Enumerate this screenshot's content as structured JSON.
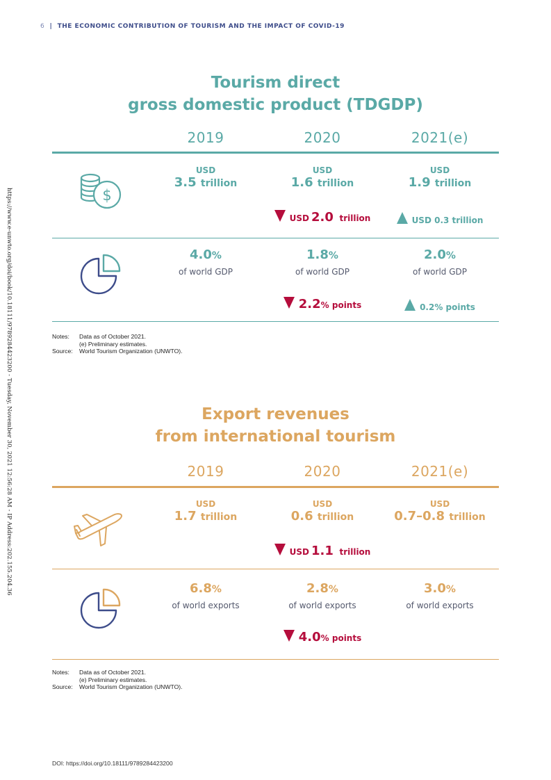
{
  "header": {
    "page_number": "6",
    "separator": "|",
    "title": "THE ECONOMIC CONTRIBUTION OF TOURISM AND THE IMPACT OF COVID-19"
  },
  "sidebar_stamp": "https://www.e-unwto.org/doi/book/10.18111/9789284423200 - Tuesday, November 30, 2021 12:56:28 AM - IP Address:202.155.204.36",
  "tdgdp": {
    "title_line1": "Tourism direct",
    "title_line2": "gross domestic product (TDGDP)",
    "years": [
      "2019",
      "2020",
      "2021(e)"
    ],
    "value_row": {
      "icon": "coins-dollar-icon",
      "cells": [
        {
          "unit": "USD",
          "value": "3.5",
          "suffix": "trillion"
        },
        {
          "unit": "USD",
          "value": "1.6",
          "suffix": "trillion"
        },
        {
          "unit": "USD",
          "value": "1.9",
          "suffix": "trillion"
        }
      ],
      "change_2020": {
        "direction": "down",
        "prefix": "USD",
        "value": "2.0",
        "suffix": "trillion"
      },
      "change_2021": {
        "direction": "up",
        "text": "USD 0.3 trillion"
      }
    },
    "share_row": {
      "icon": "pie-chart-icon",
      "cells": [
        {
          "value": "4.0",
          "unit": "%",
          "label": "of world GDP"
        },
        {
          "value": "1.8",
          "unit": "%",
          "label": "of world GDP"
        },
        {
          "value": "2.0",
          "unit": "%",
          "label": "of world GDP"
        }
      ],
      "change_2020": {
        "direction": "down",
        "value": "2.2",
        "suffix": "% points"
      },
      "change_2021": {
        "direction": "up",
        "text": "0.2% points"
      }
    },
    "notes": {
      "notes_label": "Notes:",
      "note1": "Data as of October 2021.",
      "note2": "(e) Preliminary estimates.",
      "source_label": "Source:",
      "source": "World Tourism Organization (UNWTO)."
    }
  },
  "exports": {
    "title_line1": "Export revenues",
    "title_line2": "from international tourism",
    "years": [
      "2019",
      "2020",
      "2021(e)"
    ],
    "value_row": {
      "icon": "airplane-icon",
      "cells": [
        {
          "unit": "USD",
          "value": "1.7",
          "suffix": "trillion"
        },
        {
          "unit": "USD",
          "value": "0.6",
          "suffix": "trillion"
        },
        {
          "unit": "USD",
          "value": "0.7–0.8",
          "suffix": "trillion"
        }
      ],
      "change_2020": {
        "direction": "down",
        "prefix": "USD",
        "value": "1.1",
        "suffix": "trillion"
      }
    },
    "share_row": {
      "icon": "pie-chart-icon",
      "cells": [
        {
          "value": "6.8",
          "unit": "%",
          "label": "of world exports"
        },
        {
          "value": "2.8",
          "unit": "%",
          "label": "of world exports"
        },
        {
          "value": "3.0",
          "unit": "%",
          "label": "of world exports"
        }
      ],
      "change_2020": {
        "direction": "down",
        "value": "4.0",
        "suffix": "% points"
      }
    },
    "notes": {
      "notes_label": "Notes:",
      "note1": "Data as of October 2021.",
      "note2": "(e) Preliminary estimates.",
      "source_label": "Source:",
      "source": "World Tourism Organization (UNWTO)."
    }
  },
  "doi": "DOI: https://doi.org/10.18111/9789284423200",
  "colors": {
    "teal": "#5aa9a6",
    "gold": "#dca660",
    "navy": "#3d4c8a",
    "red": "#b50d3c"
  }
}
